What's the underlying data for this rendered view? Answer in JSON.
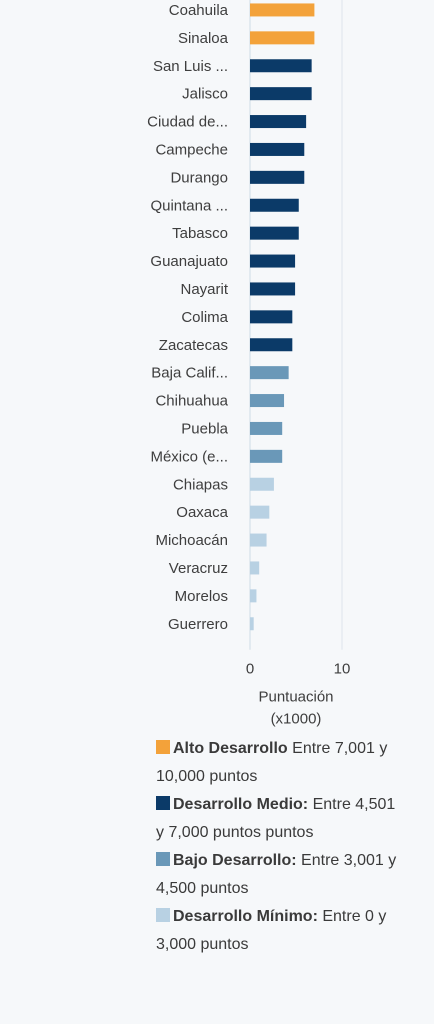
{
  "chart_data": {
    "type": "bar",
    "orientation": "horizontal",
    "categories": [
      "Coahuila",
      "Sinaloa",
      "San Luis ...",
      "Jalisco",
      "Ciudad de...",
      "Campeche",
      "Durango",
      "Quintana ...",
      "Tabasco",
      "Guanajuato",
      "Nayarit",
      "Colima",
      "Zacatecas",
      "Baja Calif...",
      "Chihuahua",
      "Puebla",
      "México (e...",
      "Chiapas",
      "Oaxaca",
      "Michoacán",
      "Veracruz",
      "Morelos",
      "Guerrero"
    ],
    "values": [
      7.0,
      7.0,
      6.7,
      6.7,
      6.1,
      5.9,
      5.9,
      5.3,
      5.3,
      4.9,
      4.9,
      4.6,
      4.6,
      4.2,
      3.7,
      3.5,
      3.5,
      2.6,
      2.1,
      1.8,
      1.0,
      0.7,
      0.4
    ],
    "groups": [
      "alto",
      "alto",
      "medio",
      "medio",
      "medio",
      "medio",
      "medio",
      "medio",
      "medio",
      "medio",
      "medio",
      "medio",
      "medio",
      "bajo",
      "bajo",
      "bajo",
      "bajo",
      "minimo",
      "minimo",
      "minimo",
      "minimo",
      "minimo",
      "minimo"
    ],
    "colors": {
      "alto": "#f3a23a",
      "medio": "#0b3a68",
      "bajo": "#6a98b8",
      "minimo": "#b8d1e3"
    },
    "xlim": [
      0,
      10
    ],
    "xticks": [
      "0",
      "10"
    ],
    "xlabel": "Puntuación (x1000)",
    "grid": true
  },
  "legend": {
    "items": [
      {
        "group": "alto",
        "title": "Alto Desarrollo",
        "text": "Entre 7,001 y 10,000 puntos"
      },
      {
        "group": "medio",
        "title": "Desarrollo Medio:",
        "text": "Entre 4,501 y 7,000 puntos puntos"
      },
      {
        "group": "bajo",
        "title": "Bajo Desarrollo:",
        "text": "Entre 3,001 y 4,500 puntos"
      },
      {
        "group": "minimo",
        "title": "Desarrollo Mínimo:",
        "text": "Entre 0 y 3,000 puntos"
      }
    ]
  }
}
